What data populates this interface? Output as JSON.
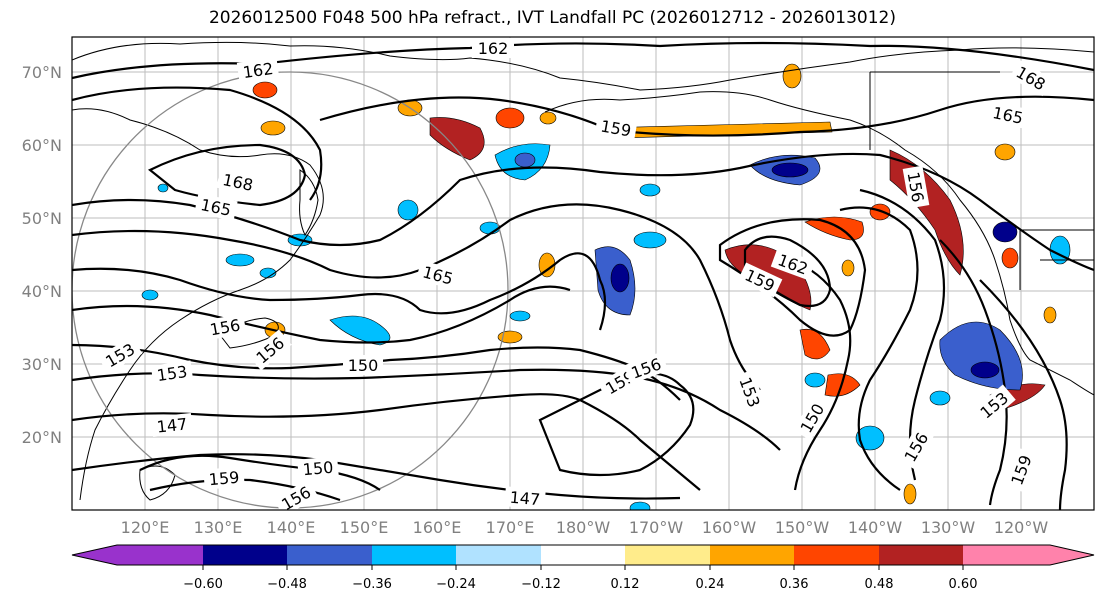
{
  "title": "2026012500 F048 500 hPa refract., IVT Landfall PC (2026012712 - 2026013012)",
  "lat_labels": [
    "70°N",
    "60°N",
    "50°N",
    "40°N",
    "30°N",
    "20°N"
  ],
  "lon_labels": [
    "120°E",
    "130°E",
    "140°E",
    "150°E",
    "160°E",
    "170°E",
    "180°W",
    "170°W",
    "160°W",
    "150°W",
    "140°W",
    "130°W",
    "120°W"
  ],
  "colorbar": {
    "ticks": [
      "−0.60",
      "−0.48",
      "−0.36",
      "−0.24",
      "−0.12",
      "0.12",
      "0.24",
      "0.36",
      "0.48",
      "0.60"
    ],
    "colors": [
      "#9932cc",
      "#00008b",
      "#3a5fcd",
      "#00bfff",
      "#b0e2ff",
      "#ffffff",
      "#ffec8b",
      "#ffa500",
      "#ff4500",
      "#b22222",
      "#ff82ab"
    ]
  },
  "contour_labels": {
    "c1": "162",
    "c2": "162",
    "c3": "168",
    "c4": "159",
    "c5": "165",
    "c6": "168",
    "c7": "165",
    "c8": "165",
    "c9": "162",
    "c10": "159",
    "c11": "156",
    "c12": "156",
    "c13": "153",
    "c14": "153",
    "c15": "150",
    "c16": "147",
    "c17": "159",
    "c18": "156",
    "c19": "153",
    "c20": "150",
    "c21": "156",
    "c22": "159",
    "c23": "150",
    "c24": "159",
    "c25": "156",
    "c26": "147",
    "c27": "156",
    "c28": "153"
  }
}
